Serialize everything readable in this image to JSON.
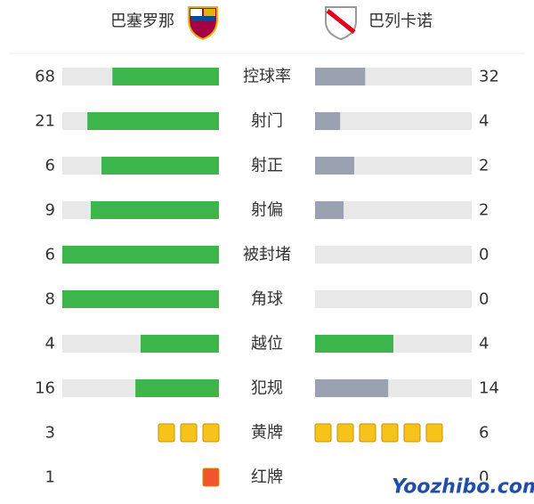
{
  "header": {
    "home": "巴塞罗那",
    "away": "巴列卡诺"
  },
  "bar_colors": {
    "leading": "#3cb54a",
    "trailing": "#9aa2b1",
    "track": "#e8e8e8"
  },
  "stats": [
    {
      "label": "控球率",
      "home": 68,
      "away": 32
    },
    {
      "label": "射门",
      "home": 21,
      "away": 4
    },
    {
      "label": "射正",
      "home": 6,
      "away": 2
    },
    {
      "label": "射偏",
      "home": 9,
      "away": 2
    },
    {
      "label": "被封堵",
      "home": 6,
      "away": 0
    },
    {
      "label": "角球",
      "home": 8,
      "away": 0
    },
    {
      "label": "越位",
      "home": 4,
      "away": 4
    },
    {
      "label": "犯规",
      "home": 16,
      "away": 14
    },
    {
      "label": "黄牌",
      "home": 3,
      "away": 6,
      "card_color": "#f7c21a"
    },
    {
      "label": "红牌",
      "home": 1,
      "away": 0,
      "card_color": "#f2542d"
    }
  ],
  "watermark": "Yoozhibo.com"
}
